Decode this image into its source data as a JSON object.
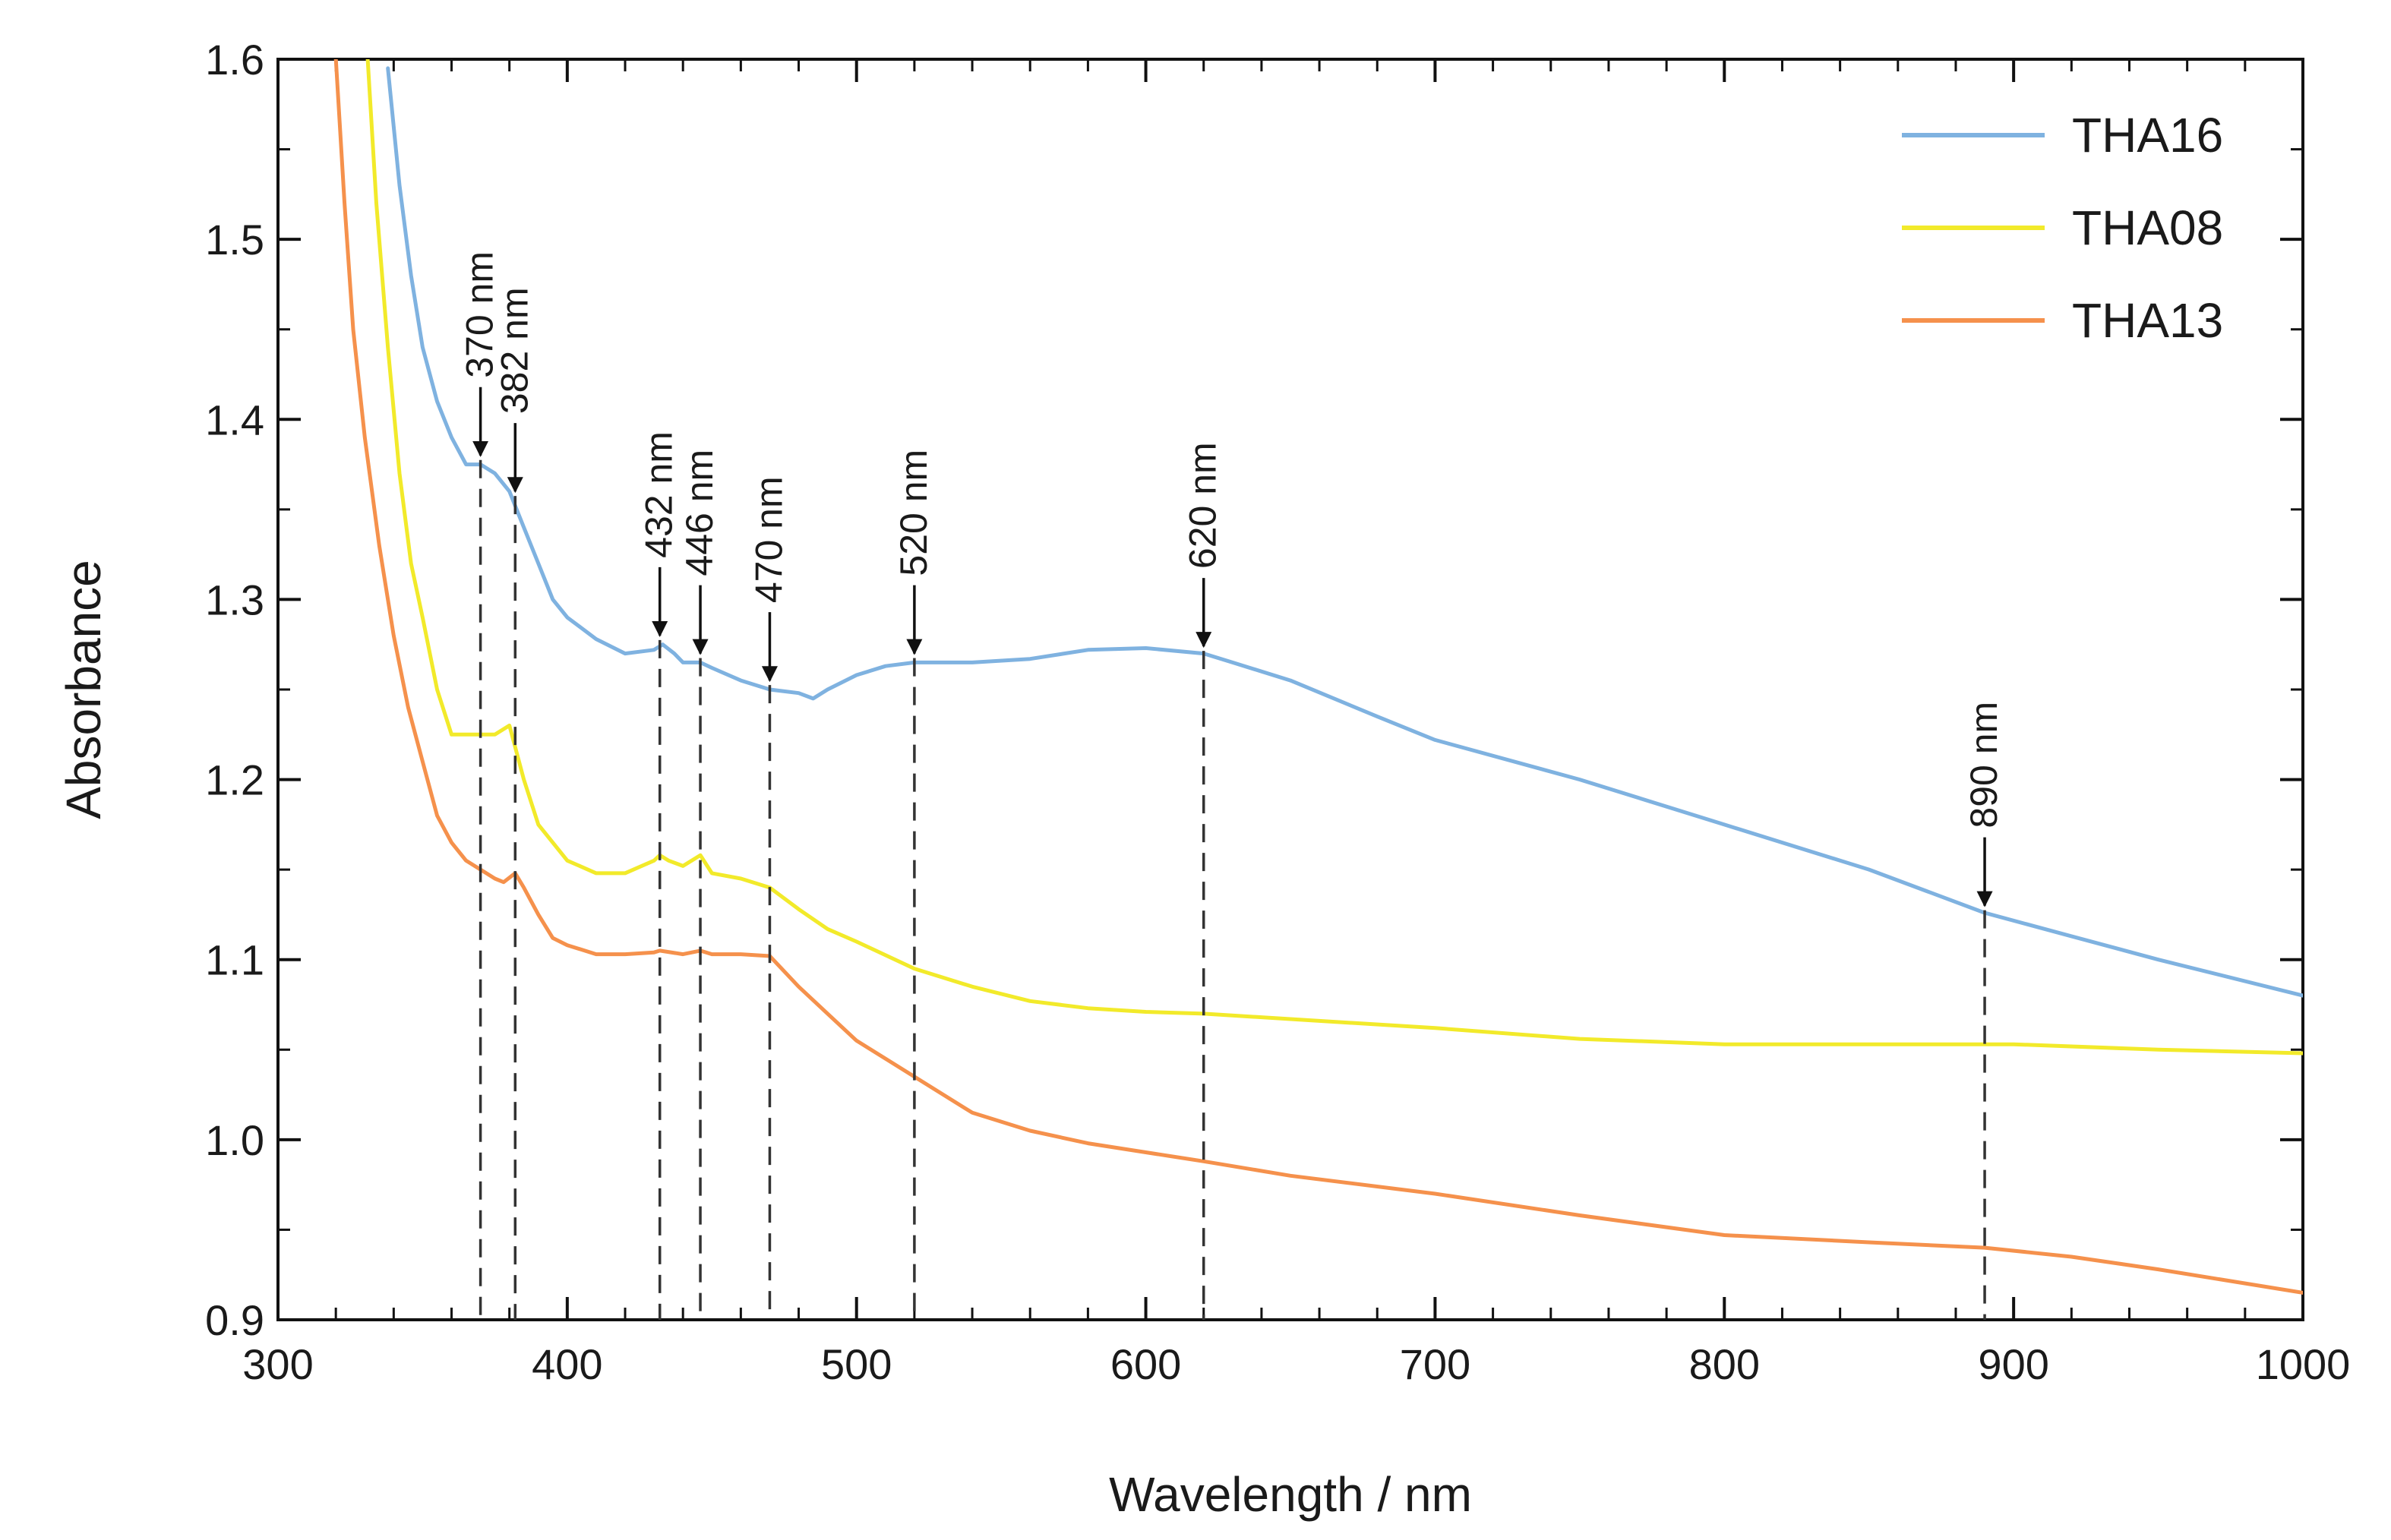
{
  "chart_data": {
    "type": "line",
    "title": "",
    "xlabel": "Wavelength / nm",
    "ylabel": "Absorbance",
    "xlim": [
      300,
      1000
    ],
    "ylim": [
      0.9,
      1.6
    ],
    "x_ticks": [
      300,
      400,
      500,
      600,
      700,
      800,
      900,
      1000
    ],
    "x_tick_labels": [
      "300",
      "400",
      "500",
      "600",
      "700",
      "800",
      "900",
      "1000"
    ],
    "x_minor_step": 20,
    "y_ticks": [
      0.9,
      1.0,
      1.1,
      1.2,
      1.3,
      1.4,
      1.5,
      1.6
    ],
    "y_tick_labels": [
      "0.9",
      "1.0",
      "1.1",
      "1.2",
      "1.3",
      "1.4",
      "1.5",
      "1.6"
    ],
    "y_minor_step": 0.05,
    "grid": false,
    "legend_position": "top-right",
    "series": [
      {
        "name": "THA16",
        "color": "#7fb2e0",
        "x": [
          338,
          342,
          346,
          350,
          355,
          360,
          365,
          370,
          375,
          380,
          385,
          390,
          395,
          400,
          410,
          420,
          430,
          433,
          437,
          440,
          446,
          450,
          460,
          470,
          480,
          485,
          490,
          500,
          510,
          520,
          540,
          560,
          580,
          600,
          620,
          630,
          650,
          680,
          700,
          750,
          800,
          850,
          870,
          890,
          920,
          950,
          1000
        ],
        "y": [
          1.595,
          1.53,
          1.48,
          1.44,
          1.41,
          1.39,
          1.375,
          1.375,
          1.37,
          1.36,
          1.34,
          1.32,
          1.3,
          1.29,
          1.278,
          1.27,
          1.272,
          1.275,
          1.27,
          1.265,
          1.265,
          1.262,
          1.255,
          1.25,
          1.248,
          1.245,
          1.25,
          1.258,
          1.263,
          1.265,
          1.265,
          1.267,
          1.272,
          1.273,
          1.27,
          1.265,
          1.255,
          1.235,
          1.222,
          1.2,
          1.175,
          1.15,
          1.138,
          1.126,
          1.113,
          1.1,
          1.08
        ]
      },
      {
        "name": "THA08",
        "color": "#f2ea2a",
        "x": [
          331,
          334,
          338,
          342,
          346,
          350,
          355,
          360,
          365,
          370,
          375,
          380,
          385,
          390,
          400,
          410,
          420,
          430,
          432,
          435,
          440,
          446,
          450,
          460,
          470,
          480,
          490,
          500,
          520,
          540,
          560,
          580,
          600,
          620,
          650,
          700,
          750,
          800,
          850,
          900,
          950,
          1000
        ],
        "y": [
          1.6,
          1.52,
          1.44,
          1.37,
          1.32,
          1.29,
          1.25,
          1.225,
          1.225,
          1.225,
          1.225,
          1.23,
          1.2,
          1.175,
          1.155,
          1.148,
          1.148,
          1.155,
          1.158,
          1.155,
          1.152,
          1.158,
          1.148,
          1.145,
          1.14,
          1.128,
          1.117,
          1.11,
          1.095,
          1.085,
          1.077,
          1.073,
          1.071,
          1.07,
          1.067,
          1.062,
          1.056,
          1.053,
          1.053,
          1.053,
          1.05,
          1.048
        ]
      },
      {
        "name": "THA13",
        "color": "#f5914c",
        "x": [
          320,
          323,
          326,
          330,
          335,
          340,
          345,
          350,
          355,
          360,
          365,
          370,
          375,
          378,
          382,
          385,
          390,
          395,
          400,
          410,
          420,
          430,
          432,
          440,
          446,
          450,
          460,
          470,
          480,
          490,
          500,
          510,
          520,
          540,
          560,
          580,
          600,
          620,
          650,
          700,
          750,
          800,
          850,
          890,
          920,
          950,
          1000
        ],
        "y": [
          1.6,
          1.52,
          1.45,
          1.39,
          1.33,
          1.28,
          1.24,
          1.21,
          1.18,
          1.165,
          1.155,
          1.15,
          1.145,
          1.143,
          1.148,
          1.14,
          1.125,
          1.112,
          1.108,
          1.103,
          1.103,
          1.104,
          1.105,
          1.103,
          1.105,
          1.103,
          1.103,
          1.102,
          1.085,
          1.07,
          1.055,
          1.045,
          1.035,
          1.015,
          1.005,
          0.998,
          0.993,
          0.988,
          0.98,
          0.97,
          0.958,
          0.947,
          0.943,
          0.94,
          0.935,
          0.928,
          0.915
        ]
      }
    ],
    "annotations": [
      {
        "label": "370 nm",
        "x": 370,
        "arrow_tip_y": 1.38
      },
      {
        "label": "382 nm",
        "x": 382,
        "arrow_tip_y": 1.36
      },
      {
        "label": "432 nm",
        "x": 432,
        "arrow_tip_y": 1.28
      },
      {
        "label": "446 nm",
        "x": 446,
        "arrow_tip_y": 1.27
      },
      {
        "label": "470 nm",
        "x": 470,
        "arrow_tip_y": 1.255
      },
      {
        "label": "520 nm",
        "x": 520,
        "arrow_tip_y": 1.27
      },
      {
        "label": "620 nm",
        "x": 620,
        "arrow_tip_y": 1.274
      },
      {
        "label": "890 nm",
        "x": 890,
        "arrow_tip_y": 1.13
      }
    ]
  }
}
